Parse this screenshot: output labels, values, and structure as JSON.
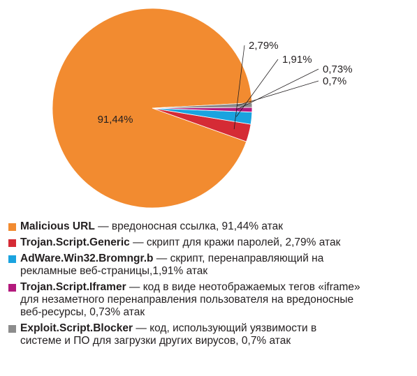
{
  "chart_data": {
    "type": "pie",
    "slices": [
      {
        "name": "Malicious URL",
        "value": 91.44,
        "label": "91,44%",
        "color": "#f28b30"
      },
      {
        "name": "Trojan.Script.Generic",
        "value": 2.79,
        "label": "2,79%",
        "color": "#d52b35"
      },
      {
        "name": "AdWare.Win32.Bromngr.b",
        "value": 1.91,
        "label": "1,91%",
        "color": "#1aa3df"
      },
      {
        "name": "Trojan.Script.Iframer",
        "value": 0.73,
        "label": "0,73%",
        "color": "#b3197c"
      },
      {
        "name": "Exploit.Script.Blocker",
        "value": 0.7,
        "label": "0,7%",
        "color": "#8c8c8c"
      }
    ]
  },
  "legend": [
    {
      "name": "Malicious URL",
      "desc": " — вредоносная ссылка, 91,44% атак",
      "color": "#f28b30"
    },
    {
      "name": "Trojan.Script.Generic",
      "desc": " — скрипт для кражи паролей, 2,79% атак",
      "color": "#d52b35"
    },
    {
      "name": "AdWare.Win32.Bromngr.b",
      "desc": " — скрипт, перенаправляющий на рекламные веб-страницы,1,91% атак",
      "color": "#1aa3df"
    },
    {
      "name": "Trojan.Script.Iframer",
      "desc": " — код в виде неотображаемых тегов «iframe» для незаметного перенаправления пользователя на вредоносные веб-ресурсы, 0,73% атак",
      "color": "#b3197c"
    },
    {
      "name": "Exploit.Script.Blocker",
      "desc": " — код, использующий уязвимости в системе и ПО для загрузки других вирусов, 0,7% атак",
      "color": "#8c8c8c"
    }
  ]
}
